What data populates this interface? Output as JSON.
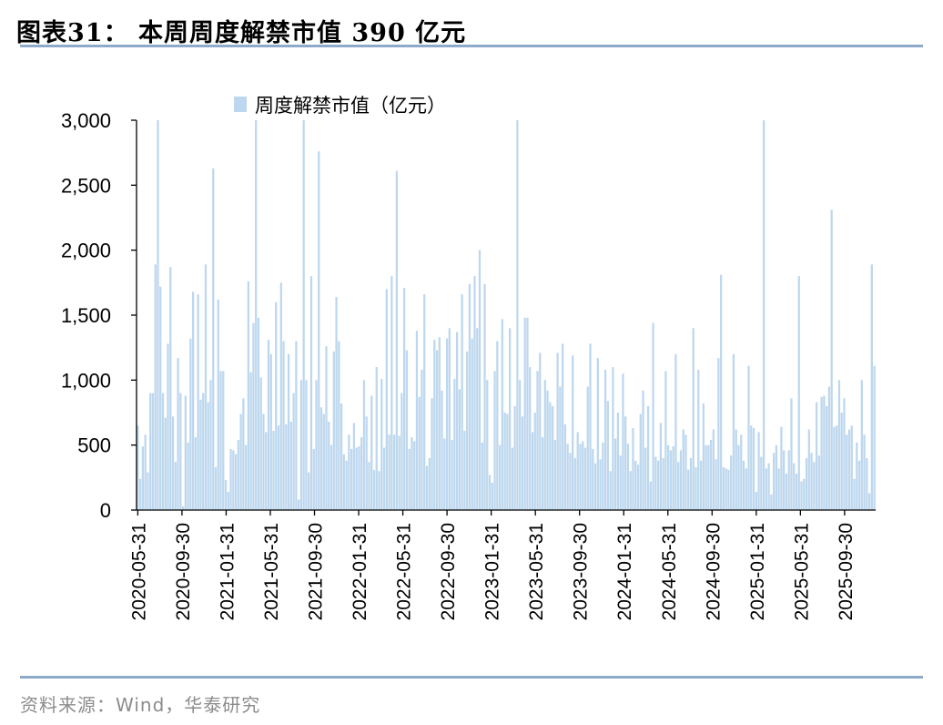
{
  "figure": {
    "title": "图表31：  本周周度解禁市值 390 亿元",
    "source": "资料来源：Wind，华泰研究"
  },
  "colors": {
    "bar": "#bdd7ee",
    "rule": "#8eaacb",
    "axis": "#000000"
  },
  "chart_data": {
    "type": "bar",
    "title": "",
    "xlabel": "",
    "ylabel": "",
    "ylim": [
      0,
      3000
    ],
    "yticks": [
      0,
      500,
      1000,
      1500,
      2000,
      2500,
      3000
    ],
    "ytick_labels": [
      "0",
      "500",
      "1,000",
      "1,500",
      "2,000",
      "2,500",
      "3,000"
    ],
    "xtick_labels": [
      "2020-05-31",
      "2020-09-30",
      "2021-01-31",
      "2021-05-31",
      "2021-09-30",
      "2022-01-31",
      "2022-05-31",
      "2022-09-30",
      "2023-01-31",
      "2023-05-31",
      "2023-09-30",
      "2024-01-31",
      "2024-05-31",
      "2024-09-30",
      "2025-01-31",
      "2025-05-31",
      "2025-09-30"
    ],
    "legend": {
      "position": "top-center"
    },
    "series": [
      {
        "name": "周度解禁市值（亿元）",
        "values": [
          650,
          240,
          490,
          580,
          290,
          900,
          900,
          1890,
          3000,
          1720,
          900,
          710,
          1280,
          1870,
          720,
          370,
          1170,
          900,
          30,
          880,
          520,
          1320,
          1680,
          560,
          1660,
          850,
          900,
          1890,
          830,
          1000,
          2630,
          330,
          1620,
          1070,
          1070,
          230,
          140,
          470,
          460,
          430,
          540,
          740,
          860,
          500,
          1760,
          1060,
          1440,
          3000,
          1480,
          1020,
          740,
          600,
          1310,
          1200,
          610,
          1600,
          650,
          1750,
          1300,
          660,
          1200,
          680,
          900,
          1300,
          80,
          1000,
          3000,
          1000,
          290,
          1800,
          470,
          1000,
          2760,
          790,
          740,
          1260,
          680,
          500,
          1220,
          1640,
          1300,
          820,
          430,
          380,
          580,
          470,
          670,
          480,
          490,
          560,
          1000,
          720,
          370,
          880,
          310,
          1100,
          300,
          1010,
          480,
          1700,
          580,
          1800,
          580,
          2610,
          570,
          900,
          1710,
          1230,
          470,
          560,
          530,
          1380,
          870,
          1080,
          1660,
          340,
          400,
          860,
          1310,
          1230,
          1330,
          920,
          550,
          1320,
          1400,
          540,
          1010,
          1370,
          930,
          1660,
          610,
          1220,
          1740,
          1320,
          1800,
          1400,
          2000,
          520,
          1740,
          1000,
          270,
          210,
          1070,
          1300,
          500,
          1470,
          750,
          740,
          1400,
          480,
          800,
          3000,
          1000,
          720,
          1480,
          1480,
          1100,
          600,
          750,
          1070,
          1210,
          560,
          1000,
          920,
          830,
          800,
          540,
          1210,
          950,
          1280,
          660,
          510,
          440,
          1190,
          400,
          600,
          510,
          530,
          480,
          950,
          1280,
          470,
          360,
          1170,
          390,
          520,
          1080,
          840,
          300,
          1100,
          550,
          750,
          420,
          1050,
          720,
          510,
          300,
          630,
          380,
          350,
          740,
          920,
          480,
          800,
          220,
          1440,
          410,
          380,
          670,
          400,
          1070,
          500,
          460,
          490,
          1200,
          370,
          460,
          620,
          580,
          310,
          400,
          1400,
          330,
          1080,
          380,
          820,
          500,
          500,
          540,
          620,
          390,
          1170,
          1810,
          330,
          320,
          310,
          420,
          1200,
          620,
          500,
          580,
          380,
          320,
          1110,
          650,
          630,
          140,
          600,
          410,
          3000,
          320,
          360,
          120,
          440,
          500,
          320,
          640,
          460,
          280,
          460,
          860,
          360,
          280,
          1800,
          220,
          240,
          400,
          620,
          440,
          370,
          830,
          420,
          870,
          880,
          800,
          950,
          2310,
          640,
          650,
          1000,
          750,
          860,
          580,
          620,
          650,
          240,
          520,
          380,
          1000,
          580,
          400,
          130,
          1890,
          1110
        ]
      }
    ]
  }
}
